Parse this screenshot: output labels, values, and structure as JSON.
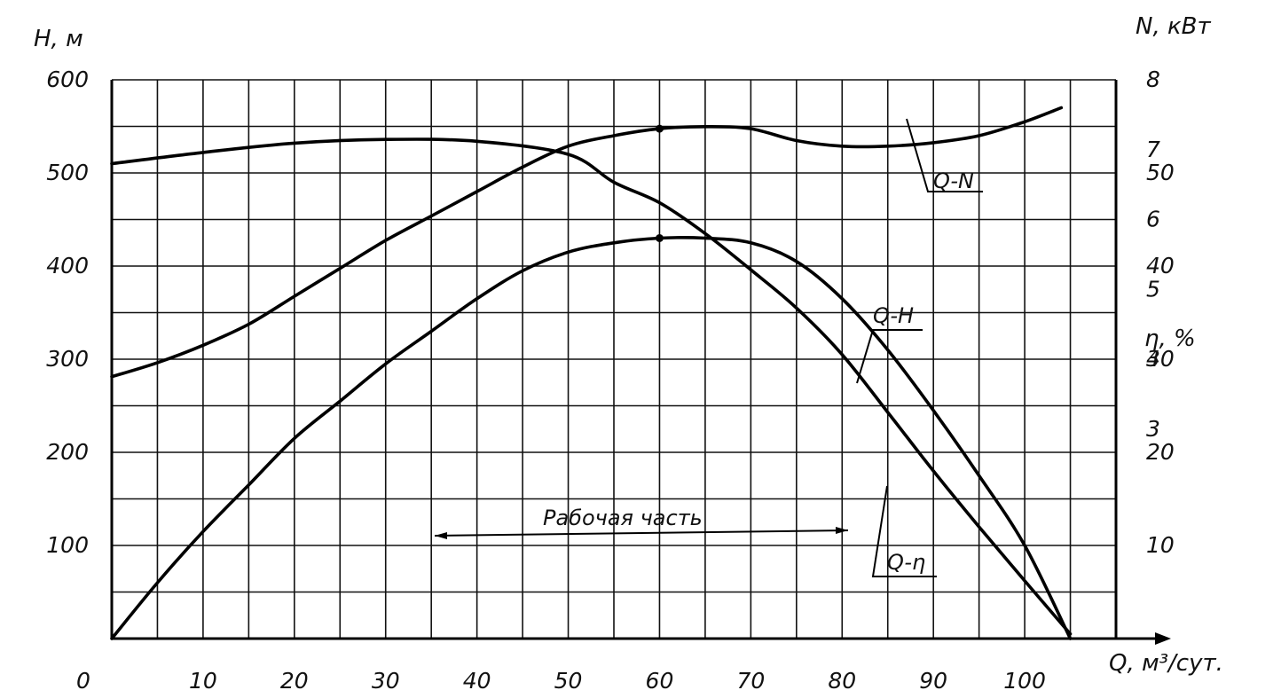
{
  "chart_data": {
    "type": "line",
    "x_axis": {
      "label": "Q, м³/сут.",
      "ticks": [
        "0",
        "10",
        "20",
        "30",
        "40",
        "50",
        "60",
        "70",
        "80",
        "90",
        "100"
      ],
      "range": [
        0,
        110
      ]
    },
    "y_left": {
      "label": "H, м",
      "ticks": [
        "100",
        "200",
        "300",
        "400",
        "500",
        "600"
      ],
      "range": [
        0,
        600
      ]
    },
    "y_right_power": {
      "label": "N, кВт",
      "ticks": [
        "3",
        "4",
        "5",
        "6",
        "7",
        "8"
      ],
      "range": [
        0,
        8
      ]
    },
    "y_right_efficiency": {
      "label": "η, %",
      "ticks": [
        "10",
        "20",
        "30",
        "40",
        "50"
      ],
      "range": [
        0,
        60
      ]
    },
    "grid": true,
    "series": [
      {
        "name": "Q-H",
        "axis": "H",
        "x": [
          0,
          10,
          20,
          30,
          40,
          50,
          55,
          60,
          65,
          70,
          75,
          80,
          85,
          90,
          95,
          100,
          105
        ],
        "y": [
          510,
          522,
          532,
          536,
          534,
          520,
          490,
          468,
          435,
          396,
          355,
          305,
          243,
          180,
          120,
          62,
          5
        ]
      },
      {
        "name": "Q-N",
        "axis": "N",
        "x": [
          0,
          5,
          10,
          15,
          20,
          25,
          30,
          35,
          40,
          45,
          50,
          55,
          60,
          65,
          70,
          75,
          80,
          85,
          90,
          95,
          100,
          104
        ],
        "y": [
          3.75,
          3.95,
          4.2,
          4.5,
          4.9,
          5.3,
          5.7,
          6.05,
          6.4,
          6.75,
          7.05,
          7.2,
          7.3,
          7.33,
          7.3,
          7.13,
          7.05,
          7.05,
          7.1,
          7.2,
          7.4,
          7.6
        ]
      },
      {
        "name": "Q-η",
        "axis": "η",
        "x": [
          0,
          5,
          10,
          15,
          20,
          25,
          30,
          35,
          40,
          45,
          50,
          55,
          60,
          65,
          70,
          75,
          80,
          85,
          90,
          95,
          100,
          105
        ],
        "y": [
          0,
          6,
          11.5,
          16.5,
          21.5,
          25.5,
          29.5,
          33,
          36.5,
          39.5,
          41.5,
          42.5,
          43,
          43,
          42.5,
          40.5,
          36.5,
          31,
          24.5,
          17.5,
          10,
          0
        ]
      }
    ],
    "markers": [
      {
        "series": "Q-N",
        "x": 60,
        "y": 7.3
      },
      {
        "series": "Q-η",
        "x": 60,
        "y": 43
      }
    ],
    "annotations": [
      {
        "text": "Рабочая часть",
        "x_from": 36,
        "x_to": 80
      }
    ]
  }
}
